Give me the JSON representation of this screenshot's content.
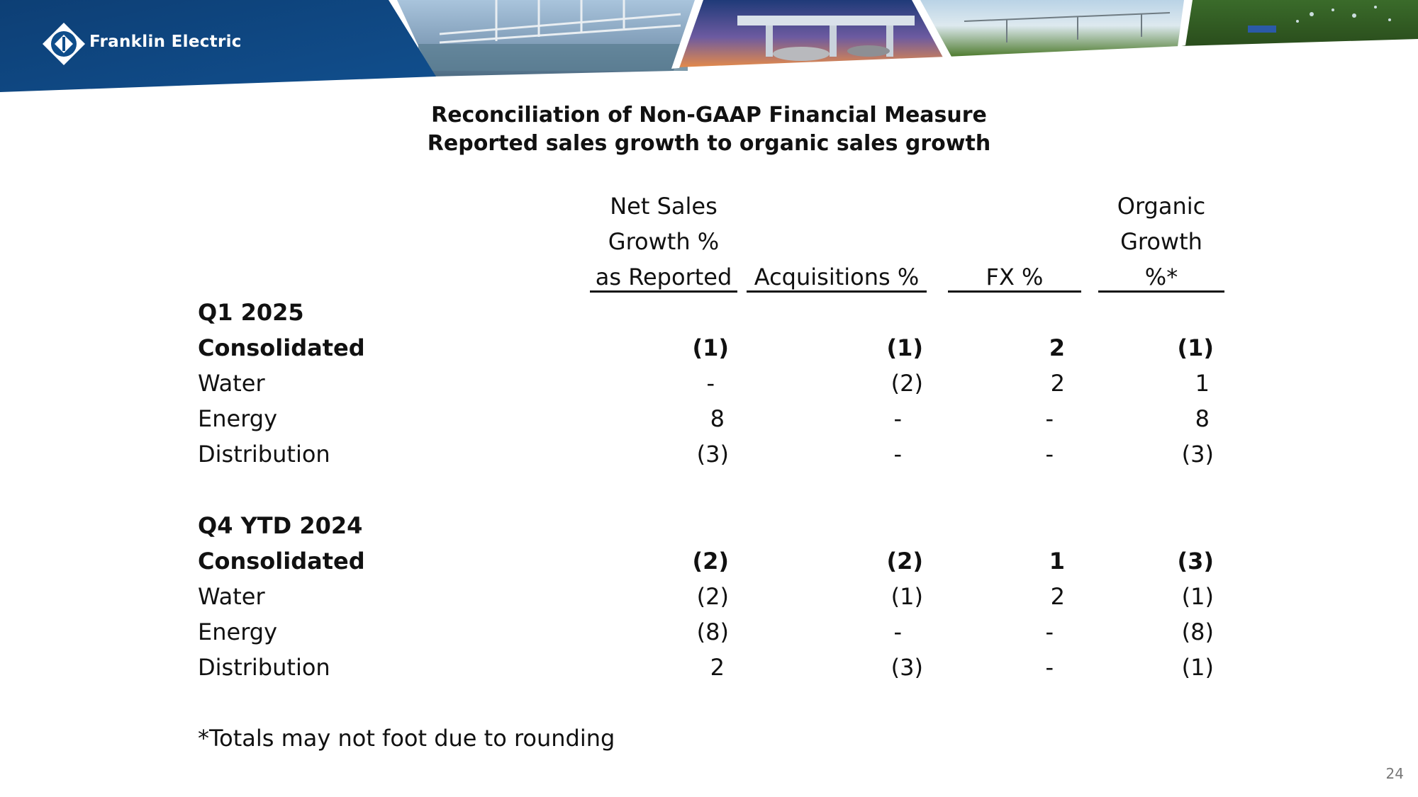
{
  "header": {
    "company": "Franklin Electric",
    "logo_icon": "franklin-electric-diamond-logo",
    "colors": {
      "brand_blue": "#0f4d8a",
      "brand_blue_dark": "#083766"
    }
  },
  "title": {
    "line1": "Reconciliation of Non-GAAP Financial Measure",
    "line2": "Reported sales growth to organic sales growth"
  },
  "columns": {
    "net_sales": [
      "Net Sales",
      "Growth %",
      "as Reported"
    ],
    "acquisitions": [
      "Acquisitions %"
    ],
    "fx": [
      "FX %"
    ],
    "organic": [
      "Organic",
      "Growth",
      "%*"
    ]
  },
  "sections": [
    {
      "period": "Q1 2025",
      "rows": [
        {
          "label": "Consolidated",
          "bold": true,
          "values": [
            "(1)",
            "(1)",
            "2",
            "(1)"
          ]
        },
        {
          "label": "Water",
          "bold": false,
          "values": [
            "-",
            "(2)",
            "2",
            "1"
          ]
        },
        {
          "label": "Energy",
          "bold": false,
          "values": [
            "8",
            "-",
            "-",
            "8"
          ]
        },
        {
          "label": "Distribution",
          "bold": false,
          "values": [
            "(3)",
            "-",
            "-",
            "(3)"
          ]
        }
      ]
    },
    {
      "period": "Q4 YTD 2024",
      "rows": [
        {
          "label": "Consolidated",
          "bold": true,
          "values": [
            "(2)",
            "(2)",
            "1",
            "(3)"
          ]
        },
        {
          "label": "Water",
          "bold": false,
          "values": [
            "(2)",
            "(1)",
            "2",
            "(1)"
          ]
        },
        {
          "label": "Energy",
          "bold": false,
          "values": [
            "(8)",
            "-",
            "-",
            "(8)"
          ]
        },
        {
          "label": "Distribution",
          "bold": false,
          "values": [
            "2",
            "(3)",
            "-",
            "(1)"
          ]
        }
      ]
    }
  ],
  "footnote": "*Totals may not foot due to rounding",
  "page_number": "24"
}
